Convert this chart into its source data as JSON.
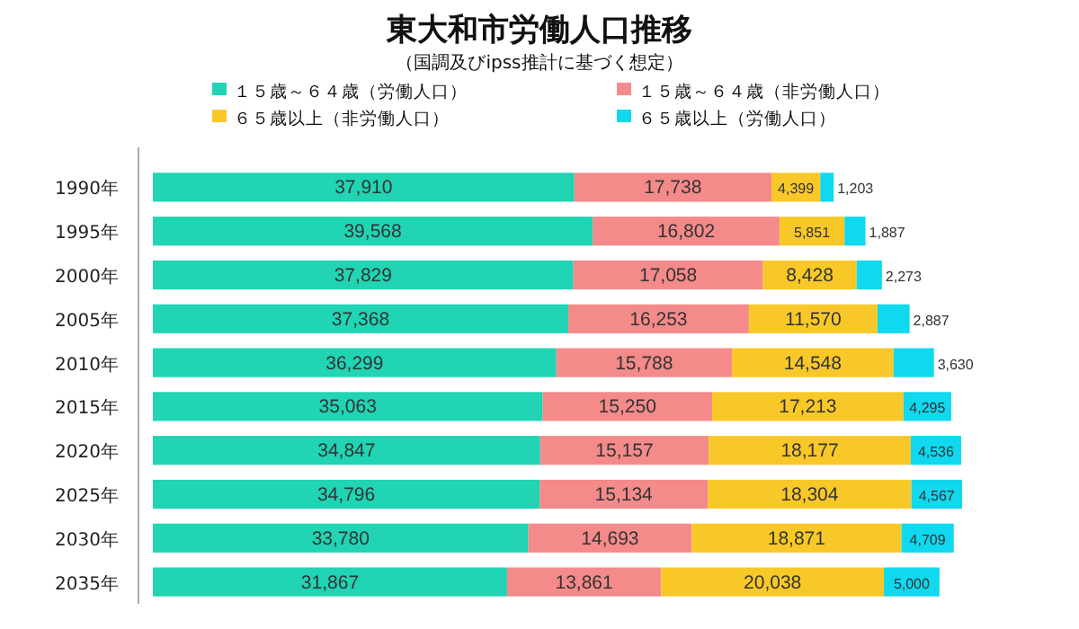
{
  "chart_data": {
    "type": "bar",
    "title": "東大和市労働人口推移",
    "subtitle": "（国調及びipss推計に基づく想定）",
    "orientation": "horizontal",
    "stacked": true,
    "legend": "top",
    "categories": [
      "1990年",
      "1995年",
      "2000年",
      "2005年",
      "2010年",
      "2015年",
      "2020年",
      "2025年",
      "2030年",
      "2035年"
    ],
    "series": [
      {
        "name": "１５歳～６４歳（労働人口）",
        "color": "#20d4b4",
        "values": [
          37910,
          39568,
          37829,
          37368,
          36299,
          35063,
          34847,
          34796,
          33780,
          31867
        ],
        "value_labels": [
          "37,910",
          "39,568",
          "37,829",
          "37,368",
          "36,299",
          "35,063",
          "34,847",
          "34,796",
          "33,780",
          "31,867"
        ]
      },
      {
        "name": "１５歳～６４歳（非労働人口）",
        "color": "#f48a8a",
        "values": [
          17738,
          16802,
          17058,
          16253,
          15788,
          15250,
          15157,
          15134,
          14693,
          13861
        ],
        "value_labels": [
          "17,738",
          "16,802",
          "17,058",
          "16,253",
          "15,788",
          "15,250",
          "15,157",
          "15,134",
          "14,693",
          "13,861"
        ]
      },
      {
        "name": "６５歳以上（非労働人口）",
        "color": "#f8c828",
        "values": [
          4399,
          5851,
          8428,
          11570,
          14548,
          17213,
          18177,
          18304,
          18871,
          20038
        ],
        "value_labels": [
          "4,399",
          "5,851",
          "8,428",
          "11,570",
          "14,548",
          "17,213",
          "18,177",
          "18,304",
          "18,871",
          "20,038"
        ]
      },
      {
        "name": "６５歳以上（労働人口）",
        "color": "#10d8ee",
        "values": [
          1203,
          1887,
          2273,
          2887,
          3630,
          4295,
          4536,
          4567,
          4709,
          5000
        ],
        "value_labels": [
          "1,203",
          "1,887",
          "2,273",
          "2,887",
          "3,630",
          "4,295",
          "4,536",
          "4,567",
          "4,709",
          "5,000"
        ]
      }
    ]
  }
}
